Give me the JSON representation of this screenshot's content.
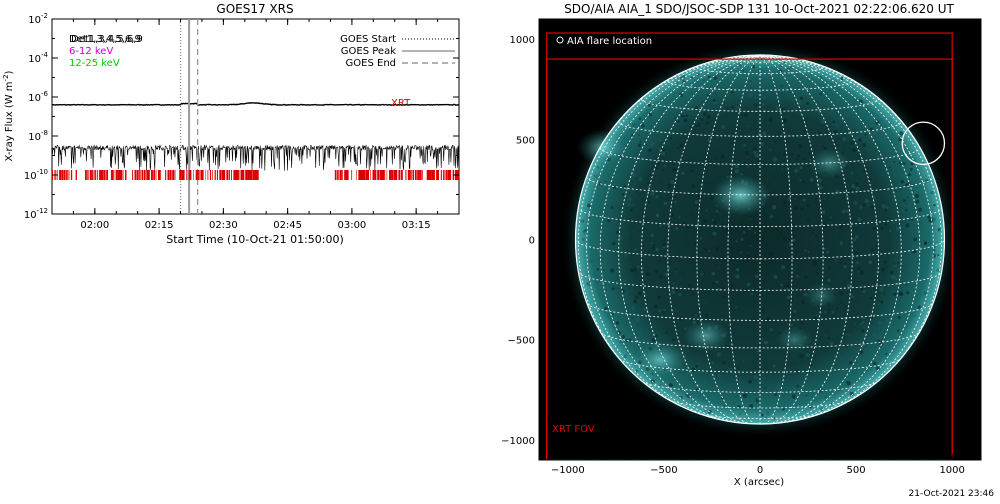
{
  "footer_timestamp": "21-Oct-2021 23:46",
  "chart_data": [
    {
      "type": "line",
      "title": "GOES17 XRS",
      "xlabel": "Start Time (10-Oct-21 01:50:00)",
      "ylabel": "X-ray Flux (W m",
      "ylabel_sup": "-2",
      "ylabel_close": ")",
      "xlim": [
        "01:50",
        "03:25"
      ],
      "x_tick_labels": [
        "02:00",
        "02:15",
        "02:30",
        "02:45",
        "03:00",
        "03:15"
      ],
      "x_tick_values": [
        "02:00",
        "02:15",
        "02:30",
        "02:45",
        "03:00",
        "03:15"
      ],
      "y_scale": "log",
      "ylim": [
        1e-12,
        0.01
      ],
      "y_tick_labels": [
        {
          "base": "10",
          "exp": "-2"
        },
        {
          "base": "10",
          "exp": "-4"
        },
        {
          "base": "10",
          "exp": "-6"
        },
        {
          "base": "10",
          "exp": "-8"
        },
        {
          "base": "10",
          "exp": "-10"
        },
        {
          "base": "10",
          "exp": "-12"
        }
      ],
      "y_tick_exponents": [
        -2,
        -4,
        -6,
        -8,
        -10,
        -12
      ],
      "channel_legend": [
        {
          "label": "Det1,3,4,5,6,9",
          "overprint": "Det1,3,4,5,6,9",
          "color": "#000000"
        },
        {
          "label": "6-12 keV",
          "color": "#cc00cc"
        },
        {
          "label": "12-25 keV",
          "color": "#00cc00"
        }
      ],
      "marker_legend": [
        {
          "label": "GOES Start",
          "style": "dotted",
          "time": "02:20"
        },
        {
          "label": "GOES Peak",
          "style": "solid",
          "time": "02:22"
        },
        {
          "label": "GOES End",
          "style": "dashed",
          "time": "02:24"
        }
      ],
      "xrt_label": "XRT",
      "xrt_color": "#dd0000",
      "series": [
        {
          "color": "#000000",
          "style": "solid",
          "level_exponent": -6.4,
          "bump": {
            "time": "02:37",
            "exponent": -6.3
          }
        },
        {
          "color": "#000000",
          "style": "noisy",
          "level_exponent": -8.6,
          "noise_low": -9.5
        }
      ],
      "xrt_coverage": [
        {
          "start": "01:50",
          "end": "02:22"
        },
        {
          "start": "02:23",
          "end": "02:38"
        },
        {
          "start": "02:56",
          "end": "03:25"
        }
      ],
      "grid": false
    },
    {
      "type": "image",
      "title": "SDO/AIA AIA_1 SDO/JSOC-SDP 131 10-Oct-2021 02:22:06.620 UT",
      "xlabel": "X (arcsec)",
      "xlim": [
        -1150,
        1150
      ],
      "ylim": [
        -1100,
        1100
      ],
      "x_ticks": [
        -1000,
        -500,
        0,
        500,
        1000
      ],
      "x_tick_labels": [
        "−1000",
        "−500",
        "0",
        "500",
        "1000"
      ],
      "y_ticks": [
        1000,
        500,
        0,
        -500,
        -1000
      ],
      "y_tick_labels": [
        "1000",
        "500",
        "0",
        "−500",
        "−1000"
      ],
      "solar_radius_arcsec": 960,
      "grid_spacing_deg": 10,
      "disk_color": "#008b8b",
      "disk_dark": "#0b2b2b",
      "flare_location_label": "AIA flare location",
      "flare_marker": "open-circle",
      "flare_location": {
        "x": 850,
        "y": 480,
        "radius": 110
      },
      "fov_label": "XRT FOV",
      "fov_color": "#dd0000",
      "xrt_fov": [
        {
          "x": [
            -1110,
            1000
          ],
          "y": [
            -1100,
            1030
          ]
        },
        {
          "x": [
            -1110,
            1000
          ],
          "y": [
            -1100,
            900
          ]
        }
      ],
      "active_regions": [
        {
          "x": -100,
          "y": 220,
          "strength": 0.9
        },
        {
          "x": -820,
          "y": 460,
          "strength": 0.7
        },
        {
          "x": -520,
          "y": -600,
          "strength": 0.75
        },
        {
          "x": -280,
          "y": -480,
          "strength": 0.6
        },
        {
          "x": 360,
          "y": 380,
          "strength": 0.5
        },
        {
          "x": 180,
          "y": -500,
          "strength": 0.4
        },
        {
          "x": 320,
          "y": -280,
          "strength": 0.35
        }
      ]
    }
  ]
}
